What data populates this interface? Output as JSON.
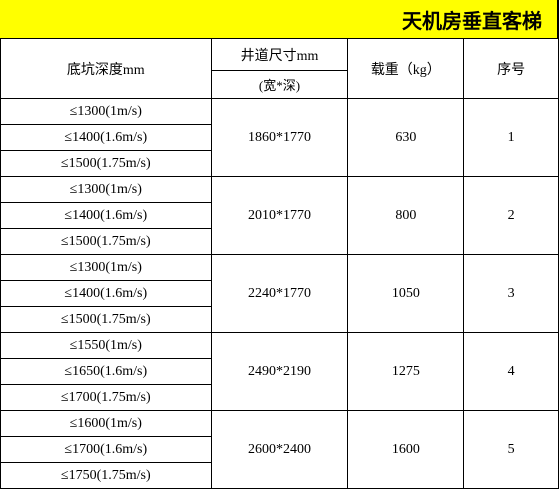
{
  "title": "天机房垂直客梯",
  "headers": {
    "col1": "底坑深度mm",
    "col2_top": "井道尺寸mm",
    "col2_sub": "(宽*深)",
    "col3": "载重（kg）",
    "col4": "序号"
  },
  "rows": [
    {
      "seq": "1",
      "load": "630",
      "shaft": "1860*1770",
      "depths": [
        "≤1300(1m/s)",
        "≤1400(1.6m/s)",
        "≤1500(1.75m/s)"
      ]
    },
    {
      "seq": "2",
      "load": "800",
      "shaft": "2010*1770",
      "depths": [
        "≤1300(1m/s)",
        "≤1400(1.6m/s)",
        "≤1500(1.75m/s)"
      ]
    },
    {
      "seq": "3",
      "load": "1050",
      "shaft": "2240*1770",
      "depths": [
        "≤1300(1m/s)",
        "≤1400(1.6m/s)",
        "≤1500(1.75m/s)"
      ]
    },
    {
      "seq": "4",
      "load": "1275",
      "shaft": "2490*2190",
      "depths": [
        "≤1550(1m/s)",
        "≤1650(1.6m/s)",
        "≤1700(1.75m/s)"
      ]
    },
    {
      "seq": "5",
      "load": "1600",
      "shaft": "2600*2400",
      "depths": [
        "≤1600(1m/s)",
        "≤1700(1.6m/s)",
        "≤1750(1.75m/s)"
      ]
    }
  ],
  "colors": {
    "title_bg": "#ffff00",
    "border": "#000000",
    "text": "#000000",
    "background": "#ffffff"
  }
}
